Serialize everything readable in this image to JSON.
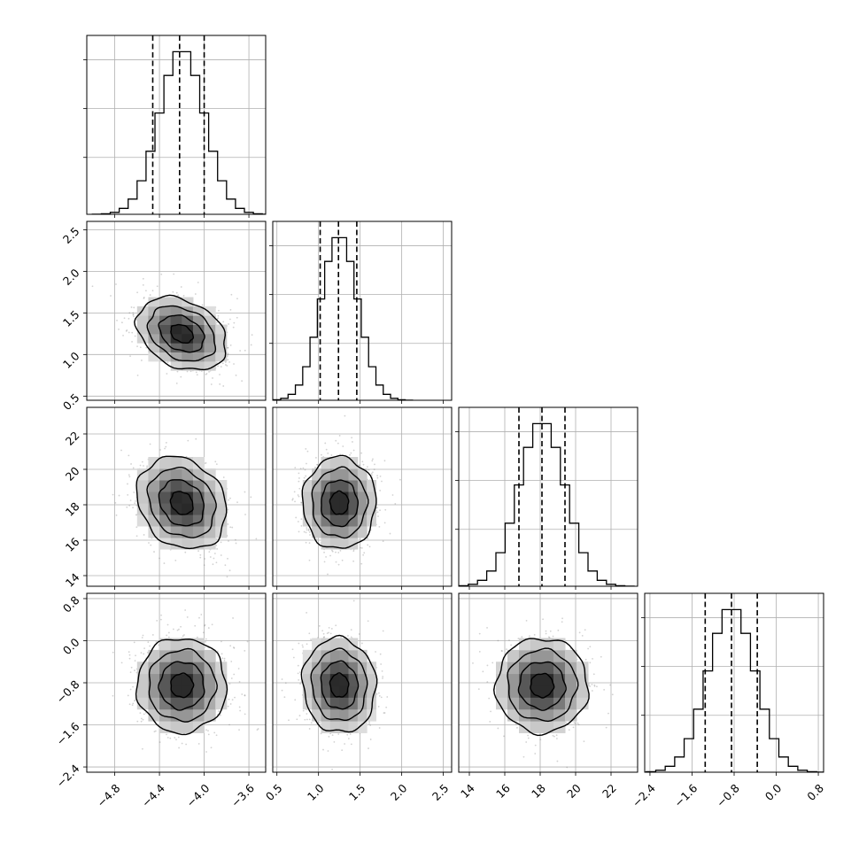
{
  "chart_data": {
    "type": "corner",
    "title": "",
    "parameters": [
      {
        "label": "",
        "mean": -4.2,
        "sigma": 0.2,
        "quantiles": [
          -4.46,
          -4.22,
          -4.0
        ],
        "range": [
          -5.05,
          -3.45
        ],
        "ticks": [
          -4.8,
          -4.4,
          -4.0,
          -3.6
        ],
        "tick_labels": [
          "−4.8",
          "−4.4",
          "−4.0",
          "−3.6"
        ]
      },
      {
        "label": "",
        "mean": 1.25,
        "sigma": 0.22,
        "quantiles": [
          1.02,
          1.24,
          1.46
        ],
        "range": [
          0.45,
          2.6
        ],
        "ticks": [
          0.5,
          1.0,
          1.5,
          2.0,
          2.5
        ],
        "tick_labels": [
          "0.5",
          "1.0",
          "1.5",
          "2.0",
          "2.5"
        ]
      },
      {
        "label": "",
        "mean": 18.1,
        "sigma": 1.3,
        "quantiles": [
          16.8,
          18.1,
          19.4
        ],
        "range": [
          13.4,
          23.5
        ],
        "ticks": [
          14,
          16,
          18,
          20,
          22
        ],
        "tick_labels": [
          "14",
          "16",
          "18",
          "20",
          "22"
        ]
      },
      {
        "label": "",
        "mean": -0.85,
        "sigma": 0.45,
        "quantiles": [
          -1.35,
          -0.85,
          -0.36
        ],
        "range": [
          -2.5,
          0.9
        ],
        "ticks": [
          -2.4,
          -1.6,
          -0.8,
          0.0,
          0.8
        ],
        "tick_labels": [
          "−2.4",
          "−1.6",
          "−0.8",
          "0.0",
          "0.8"
        ]
      }
    ],
    "correlations": {
      "1-0": -0.3,
      "2-0": -0.2,
      "2-1": 0.0,
      "3-0": 0.0,
      "3-1": -0.05,
      "3-2": 0.0
    },
    "contour_levels_sigma": [
      0.5,
      1.0,
      1.5,
      2.0
    ],
    "histogram": {
      "bins": 20,
      "style": "step"
    },
    "grid": true
  }
}
